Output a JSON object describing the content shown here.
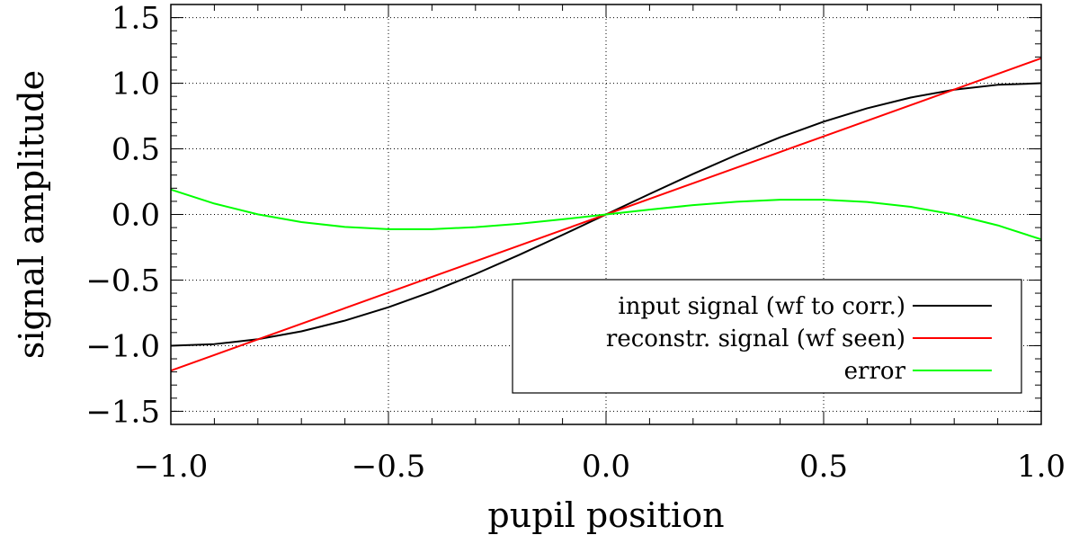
{
  "chart_data": {
    "type": "line",
    "xlabel": "pupil position",
    "ylabel": "signal amplitude",
    "xlim": [
      -1.0,
      1.0
    ],
    "ylim": [
      -1.6,
      1.6
    ],
    "x_ticks": [
      -1.0,
      -0.5,
      0.0,
      0.5,
      1.0
    ],
    "x_tick_labels": [
      "−1.0",
      "−0.5",
      "0.0",
      "0.5",
      "1.0"
    ],
    "y_ticks": [
      -1.5,
      -1.0,
      -0.5,
      0.0,
      0.5,
      1.0,
      1.5
    ],
    "y_tick_labels": [
      "−1.5",
      "−1.0",
      "−0.5",
      "0.0",
      "0.5",
      "1.0",
      "1.5"
    ],
    "grid": true,
    "legend_position": "lower-right",
    "x": [
      -1.0,
      -0.9,
      -0.8,
      -0.7,
      -0.6,
      -0.5,
      -0.4,
      -0.3,
      -0.2,
      -0.1,
      0.0,
      0.1,
      0.2,
      0.3,
      0.4,
      0.5,
      0.6,
      0.7,
      0.8,
      0.9,
      1.0
    ],
    "series": [
      {
        "name": "input signal (wf to corr.)",
        "color": "#000000",
        "values": [
          -1.0,
          -0.988,
          -0.951,
          -0.891,
          -0.809,
          -0.707,
          -0.588,
          -0.454,
          -0.309,
          -0.156,
          0.0,
          0.156,
          0.309,
          0.454,
          0.588,
          0.707,
          0.809,
          0.891,
          0.951,
          0.988,
          1.0
        ]
      },
      {
        "name": "reconstr. signal (wf seen)",
        "color": "#ff0000",
        "values": [
          -1.19,
          -1.071,
          -0.952,
          -0.833,
          -0.714,
          -0.595,
          -0.476,
          -0.357,
          -0.238,
          -0.119,
          0.0,
          0.119,
          0.238,
          0.357,
          0.476,
          0.595,
          0.714,
          0.833,
          0.952,
          1.071,
          1.19
        ]
      },
      {
        "name": "error",
        "color": "#00ff00",
        "values": [
          0.19,
          0.083,
          0.001,
          -0.058,
          -0.095,
          -0.112,
          -0.112,
          -0.097,
          -0.071,
          -0.037,
          0.0,
          0.037,
          0.071,
          0.097,
          0.112,
          0.112,
          0.095,
          0.058,
          -0.001,
          -0.083,
          -0.19
        ]
      }
    ]
  }
}
